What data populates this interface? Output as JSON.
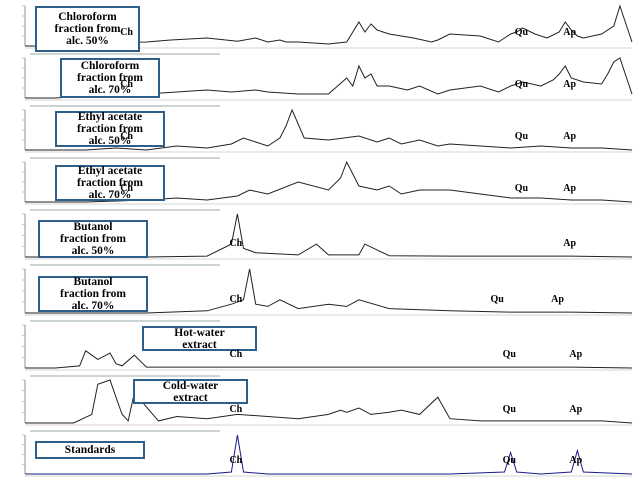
{
  "chart_data": [
    {
      "type": "line",
      "label_lines": [
        "Chloroform",
        "fraction from",
        "alc. 50%"
      ],
      "peak_labels": [
        {
          "text": "Ch",
          "rt": 0.17
        },
        {
          "text": "Qu",
          "rt": 0.82
        },
        {
          "text": "Ap",
          "rt": 0.9
        }
      ],
      "x": [
        0.0,
        0.05,
        0.08,
        0.1,
        0.14,
        0.2,
        0.24,
        0.3,
        0.35,
        0.38,
        0.4,
        0.42,
        0.43,
        0.45,
        0.5,
        0.53,
        0.55,
        0.56,
        0.57,
        0.58,
        0.6,
        0.62,
        0.64,
        0.67,
        0.68,
        0.7,
        0.75,
        0.78,
        0.8,
        0.81,
        0.82,
        0.84,
        0.86,
        0.88,
        0.89,
        0.9,
        0.91,
        0.92,
        0.95,
        0.97,
        0.98,
        1.0
      ],
      "y": [
        0.0,
        0.0,
        0.05,
        0.0,
        0.08,
        0.1,
        0.15,
        0.2,
        0.12,
        0.2,
        0.1,
        0.15,
        0.1,
        0.1,
        0.05,
        0.1,
        0.6,
        0.35,
        0.55,
        0.4,
        0.3,
        0.25,
        0.2,
        0.1,
        0.15,
        0.3,
        0.25,
        0.1,
        0.3,
        0.35,
        0.45,
        0.3,
        0.2,
        0.35,
        0.6,
        0.4,
        0.25,
        0.2,
        0.3,
        0.5,
        1.0,
        0.1
      ]
    },
    {
      "type": "line",
      "label_lines": [
        "Chloroform",
        "fraction from",
        "alc. 70%"
      ],
      "peak_labels": [
        {
          "text": "Ch",
          "rt": 0.17
        },
        {
          "text": "Qu",
          "rt": 0.82
        },
        {
          "text": "Ap",
          "rt": 0.9
        }
      ],
      "x": [
        0.0,
        0.05,
        0.1,
        0.15,
        0.2,
        0.25,
        0.3,
        0.34,
        0.38,
        0.4,
        0.45,
        0.5,
        0.53,
        0.54,
        0.55,
        0.56,
        0.57,
        0.58,
        0.6,
        0.63,
        0.65,
        0.68,
        0.7,
        0.75,
        0.78,
        0.8,
        0.82,
        0.85,
        0.87,
        0.88,
        0.89,
        0.9,
        0.92,
        0.95,
        0.96,
        0.97,
        0.98,
        1.0
      ],
      "y": [
        0.0,
        0.0,
        0.05,
        0.1,
        0.1,
        0.15,
        0.2,
        0.15,
        0.2,
        0.15,
        0.1,
        0.1,
        0.5,
        0.3,
        0.8,
        0.5,
        0.6,
        0.3,
        0.3,
        0.2,
        0.3,
        0.1,
        0.2,
        0.3,
        0.15,
        0.3,
        0.4,
        0.3,
        0.45,
        0.6,
        0.8,
        0.5,
        0.4,
        0.35,
        0.6,
        0.9,
        1.0,
        0.1
      ]
    },
    {
      "type": "line",
      "label_lines": [
        "Ethyl acetate",
        "fraction from",
        "alc. 50%"
      ],
      "peak_labels": [
        {
          "text": "Ch",
          "rt": 0.17
        },
        {
          "text": "Qu",
          "rt": 0.82
        },
        {
          "text": "Ap",
          "rt": 0.9
        }
      ],
      "x": [
        0.0,
        0.1,
        0.15,
        0.2,
        0.25,
        0.3,
        0.34,
        0.36,
        0.4,
        0.42,
        0.43,
        0.44,
        0.46,
        0.5,
        0.55,
        0.58,
        0.6,
        0.62,
        0.65,
        0.68,
        0.7,
        0.75,
        0.8,
        0.85,
        0.9,
        0.95,
        1.0
      ],
      "y": [
        0.0,
        0.0,
        0.05,
        0.0,
        0.1,
        0.05,
        0.15,
        0.3,
        0.1,
        0.3,
        0.6,
        1.0,
        0.3,
        0.25,
        0.35,
        0.2,
        0.3,
        0.15,
        0.25,
        0.1,
        0.15,
        0.1,
        0.05,
        0.1,
        0.05,
        0.05,
        0.0
      ]
    },
    {
      "type": "line",
      "label_lines": [
        "Ethyl acetate",
        "fraction from",
        "alc. 70%"
      ],
      "peak_labels": [
        {
          "text": "Ch",
          "rt": 0.17
        },
        {
          "text": "Qu",
          "rt": 0.82
        },
        {
          "text": "Ap",
          "rt": 0.9
        }
      ],
      "x": [
        0.0,
        0.1,
        0.2,
        0.25,
        0.3,
        0.35,
        0.37,
        0.4,
        0.45,
        0.5,
        0.52,
        0.53,
        0.55,
        0.58,
        0.6,
        0.62,
        0.65,
        0.7,
        0.75,
        0.8,
        0.85,
        0.9,
        0.95,
        1.0
      ],
      "y": [
        0.0,
        0.0,
        0.05,
        0.1,
        0.05,
        0.15,
        0.3,
        0.2,
        0.5,
        0.3,
        0.6,
        1.0,
        0.4,
        0.3,
        0.4,
        0.2,
        0.3,
        0.3,
        0.2,
        0.1,
        0.1,
        0.05,
        0.05,
        0.0
      ]
    },
    {
      "type": "line",
      "label_lines": [
        "Butanol",
        "fraction from",
        "alc. 50%"
      ],
      "peak_labels": [
        {
          "text": "Ch",
          "rt": 0.35
        },
        {
          "text": "Ap",
          "rt": 0.9
        }
      ],
      "x": [
        0.0,
        0.1,
        0.2,
        0.3,
        0.34,
        0.35,
        0.36,
        0.38,
        0.45,
        0.48,
        0.5,
        0.55,
        0.56,
        0.6,
        0.7,
        0.8,
        0.9,
        1.0
      ],
      "y": [
        0.0,
        0.0,
        0.0,
        0.02,
        0.3,
        1.0,
        0.2,
        0.1,
        0.05,
        0.3,
        0.05,
        0.05,
        0.3,
        0.03,
        0.02,
        0.02,
        0.02,
        0.0
      ]
    },
    {
      "type": "line",
      "label_lines": [
        "Butanol",
        "fraction from",
        "alc. 70%"
      ],
      "peak_labels": [
        {
          "text": "Ch",
          "rt": 0.35
        },
        {
          "text": "Qu",
          "rt": 0.78
        },
        {
          "text": "Ap",
          "rt": 0.88
        }
      ],
      "x": [
        0.0,
        0.1,
        0.2,
        0.3,
        0.34,
        0.36,
        0.37,
        0.38,
        0.4,
        0.42,
        0.45,
        0.5,
        0.53,
        0.55,
        0.6,
        0.7,
        0.8,
        0.9,
        1.0
      ],
      "y": [
        0.0,
        0.0,
        0.0,
        0.05,
        0.2,
        0.3,
        1.0,
        0.2,
        0.15,
        0.3,
        0.1,
        0.2,
        0.15,
        0.3,
        0.1,
        0.05,
        0.02,
        0.02,
        0.0
      ]
    },
    {
      "type": "line",
      "label_lines": [
        "Hot-water",
        "extract"
      ],
      "peak_labels": [
        {
          "text": "Ch",
          "rt": 0.35
        },
        {
          "text": "Qu",
          "rt": 0.8
        },
        {
          "text": "Ap",
          "rt": 0.91
        }
      ],
      "x": [
        0.0,
        0.05,
        0.09,
        0.1,
        0.12,
        0.14,
        0.15,
        0.16,
        0.18,
        0.2,
        0.3,
        0.4,
        0.5,
        0.6,
        0.7,
        0.8,
        0.9,
        1.0
      ],
      "y": [
        0.0,
        0.0,
        0.05,
        0.4,
        0.2,
        0.35,
        0.1,
        0.05,
        0.3,
        0.02,
        0.02,
        0.02,
        0.02,
        0.02,
        0.02,
        0.02,
        0.02,
        0.0
      ]
    },
    {
      "type": "line",
      "label_lines": [
        "Cold-water",
        "extract"
      ],
      "peak_labels": [
        {
          "text": "Ch",
          "rt": 0.35
        },
        {
          "text": "Qu",
          "rt": 0.8
        },
        {
          "text": "Ap",
          "rt": 0.91
        }
      ],
      "x": [
        0.0,
        0.08,
        0.11,
        0.12,
        0.14,
        0.15,
        0.16,
        0.17,
        0.18,
        0.22,
        0.25,
        0.3,
        0.35,
        0.4,
        0.45,
        0.5,
        0.52,
        0.53,
        0.55,
        0.57,
        0.6,
        0.62,
        0.65,
        0.68,
        0.7,
        0.75,
        0.8,
        0.85,
        0.9,
        0.95,
        1.0
      ],
      "y": [
        0.0,
        0.0,
        0.2,
        0.9,
        1.0,
        0.6,
        0.2,
        0.05,
        0.7,
        0.05,
        0.15,
        0.1,
        0.2,
        0.15,
        0.1,
        0.2,
        0.3,
        0.25,
        0.35,
        0.2,
        0.25,
        0.3,
        0.2,
        0.6,
        0.1,
        0.05,
        0.05,
        0.05,
        0.05,
        0.05,
        0.0
      ]
    },
    {
      "type": "line",
      "label_lines": [
        "Standards"
      ],
      "peak_labels": [
        {
          "text": "Ch",
          "rt": 0.35
        },
        {
          "text": "Qu",
          "rt": 0.8
        },
        {
          "text": "Ap",
          "rt": 0.91
        }
      ],
      "x": [
        0.0,
        0.3,
        0.34,
        0.35,
        0.36,
        0.4,
        0.7,
        0.79,
        0.8,
        0.81,
        0.85,
        0.9,
        0.91,
        0.92,
        1.0
      ],
      "y": [
        0.0,
        0.0,
        0.05,
        1.0,
        0.05,
        0.0,
        0.0,
        0.05,
        0.55,
        0.05,
        0.0,
        0.05,
        0.6,
        0.05,
        0.0
      ],
      "line_color": "#1a1a8c"
    }
  ]
}
